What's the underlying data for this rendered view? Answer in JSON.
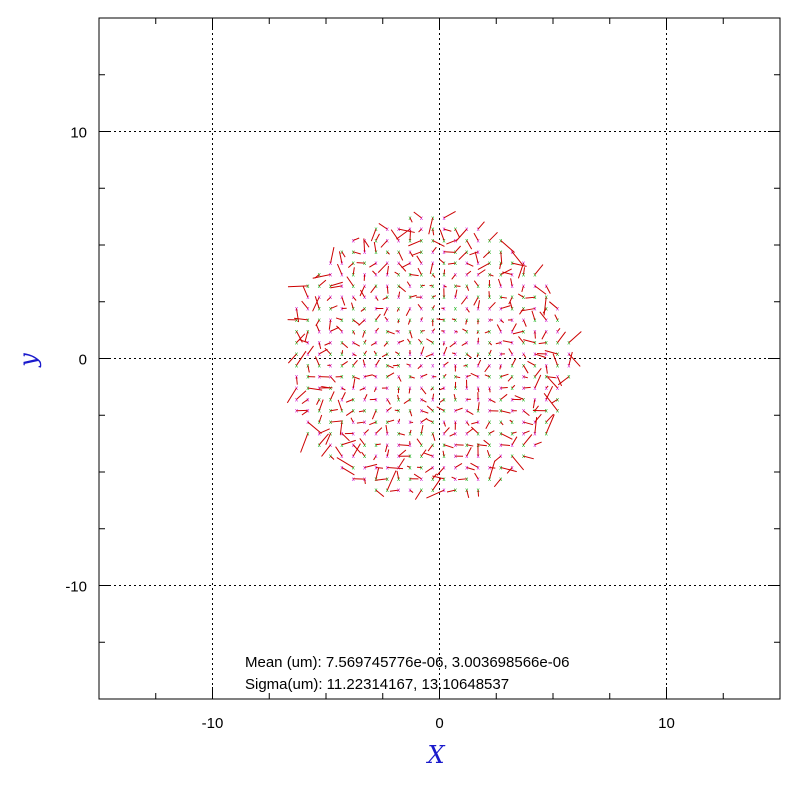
{
  "chart_data": {
    "type": "scatter",
    "title": "",
    "xlabel": "X",
    "ylabel": "y",
    "xlim": [
      -15,
      15
    ],
    "ylim": [
      -15,
      15
    ],
    "grid": true,
    "x_ticks": [
      -10,
      0,
      10
    ],
    "y_ticks": [
      -10,
      0,
      10
    ],
    "x_tick_labels": [
      "-10",
      "0",
      "10"
    ],
    "y_tick_labels": [
      "-10",
      "0",
      "10"
    ],
    "points": {
      "grid_step": 0.5,
      "disk_center": [
        -0.5,
        0
      ],
      "disk_radius": 6.3,
      "marker_colors": [
        "#00aa00",
        "#cc00cc"
      ],
      "vector_color": "#cc0000"
    },
    "annotations": {
      "mean": "Mean (um): 7.569745776e-06, 3.003698566e-06",
      "sigma": "Sigma(um): 11.22314167, 13.10648537"
    }
  }
}
